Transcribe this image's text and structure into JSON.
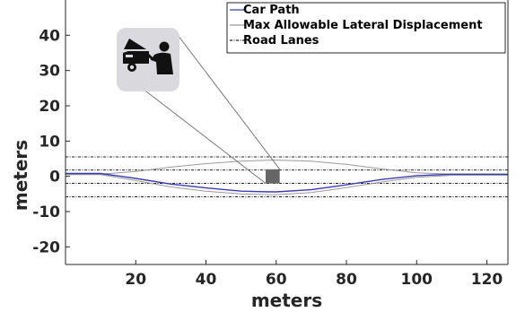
{
  "chart_data": {
    "type": "line",
    "xlabel": "meters",
    "ylabel": "meters",
    "xlim": [
      0,
      126
    ],
    "ylim": [
      -25,
      50
    ],
    "xticks": [
      20,
      40,
      60,
      80,
      100,
      120
    ],
    "yticks": [
      -20,
      -10,
      0,
      10,
      20,
      30,
      40
    ],
    "legend_position": "top-right",
    "series": [
      {
        "name": "Car Path",
        "color": "#3b3bb3",
        "style": "solid",
        "x": [
          0,
          10,
          20,
          30,
          40,
          50,
          58,
          60,
          70,
          80,
          90,
          100,
          110,
          126
        ],
        "y": [
          0.8,
          0.8,
          -0.6,
          -2.2,
          -3.3,
          -4.2,
          -4.4,
          -4.4,
          -3.8,
          -2.4,
          -0.9,
          0.2,
          0.6,
          0.6
        ]
      },
      {
        "name": "Max Allowable Lateral Displacement",
        "color": "#9a9a9a",
        "style": "solid",
        "x": [
          0,
          10,
          20,
          30,
          40,
          50,
          58,
          60,
          70,
          80,
          90,
          100,
          110,
          126
        ],
        "y": [
          0.5,
          0.5,
          -1.2,
          -3.0,
          -4.2,
          -5.0,
          -5.2,
          -5.2,
          -4.6,
          -3.2,
          -1.6,
          -0.3,
          0.3,
          0.3
        ],
        "y_upper": [
          0.5,
          0.6,
          1.4,
          2.6,
          3.6,
          4.3,
          4.6,
          4.6,
          4.3,
          3.4,
          2.1,
          1.0,
          0.6,
          0.6
        ]
      },
      {
        "name": "Road Lanes",
        "color": "#222222",
        "style": "dash-dot",
        "lanes_y": [
          5.5,
          1.8,
          -2.0,
          -5.8
        ]
      }
    ],
    "obstacle": {
      "x": 59,
      "y": 0,
      "size": 4,
      "color": "#666666"
    },
    "inset_icon": "mechanic-repairing-car-icon"
  }
}
